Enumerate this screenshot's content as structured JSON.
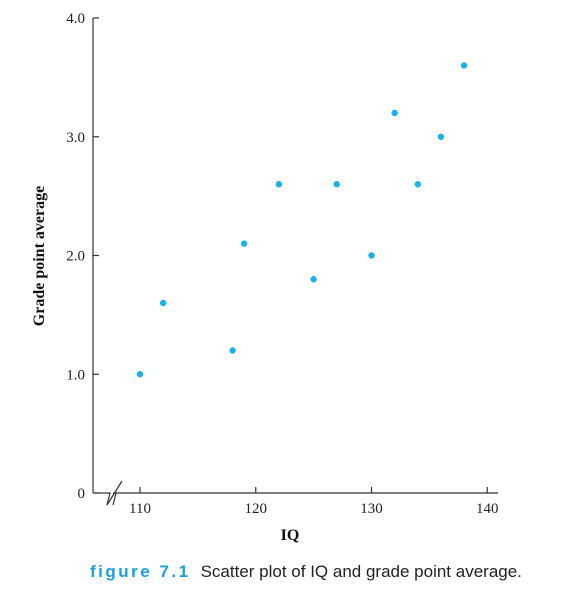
{
  "chart_data": {
    "type": "scatter",
    "xlabel": "IQ",
    "ylabel": "Grade point average",
    "x_ticks": [
      "110",
      "120",
      "130",
      "140"
    ],
    "y_ticks": [
      "0",
      "1.0",
      "2.0",
      "3.0",
      "4.0"
    ],
    "xlim": [
      107.3,
      140
    ],
    "ylim": [
      0,
      4.0
    ],
    "x_axis_break": true,
    "grid": false,
    "point_color": "#1ab0e8",
    "points": [
      {
        "x": 110,
        "y": 1.0
      },
      {
        "x": 112,
        "y": 1.6
      },
      {
        "x": 118,
        "y": 1.2
      },
      {
        "x": 119,
        "y": 2.1
      },
      {
        "x": 122,
        "y": 2.6
      },
      {
        "x": 125,
        "y": 1.8
      },
      {
        "x": 127,
        "y": 2.6
      },
      {
        "x": 130,
        "y": 2.0
      },
      {
        "x": 132,
        "y": 3.2
      },
      {
        "x": 134,
        "y": 2.6
      },
      {
        "x": 136,
        "y": 3.0
      },
      {
        "x": 138,
        "y": 3.6
      }
    ]
  },
  "caption": {
    "label": "figure 7.1",
    "text": "Scatter plot of IQ and grade point average."
  }
}
